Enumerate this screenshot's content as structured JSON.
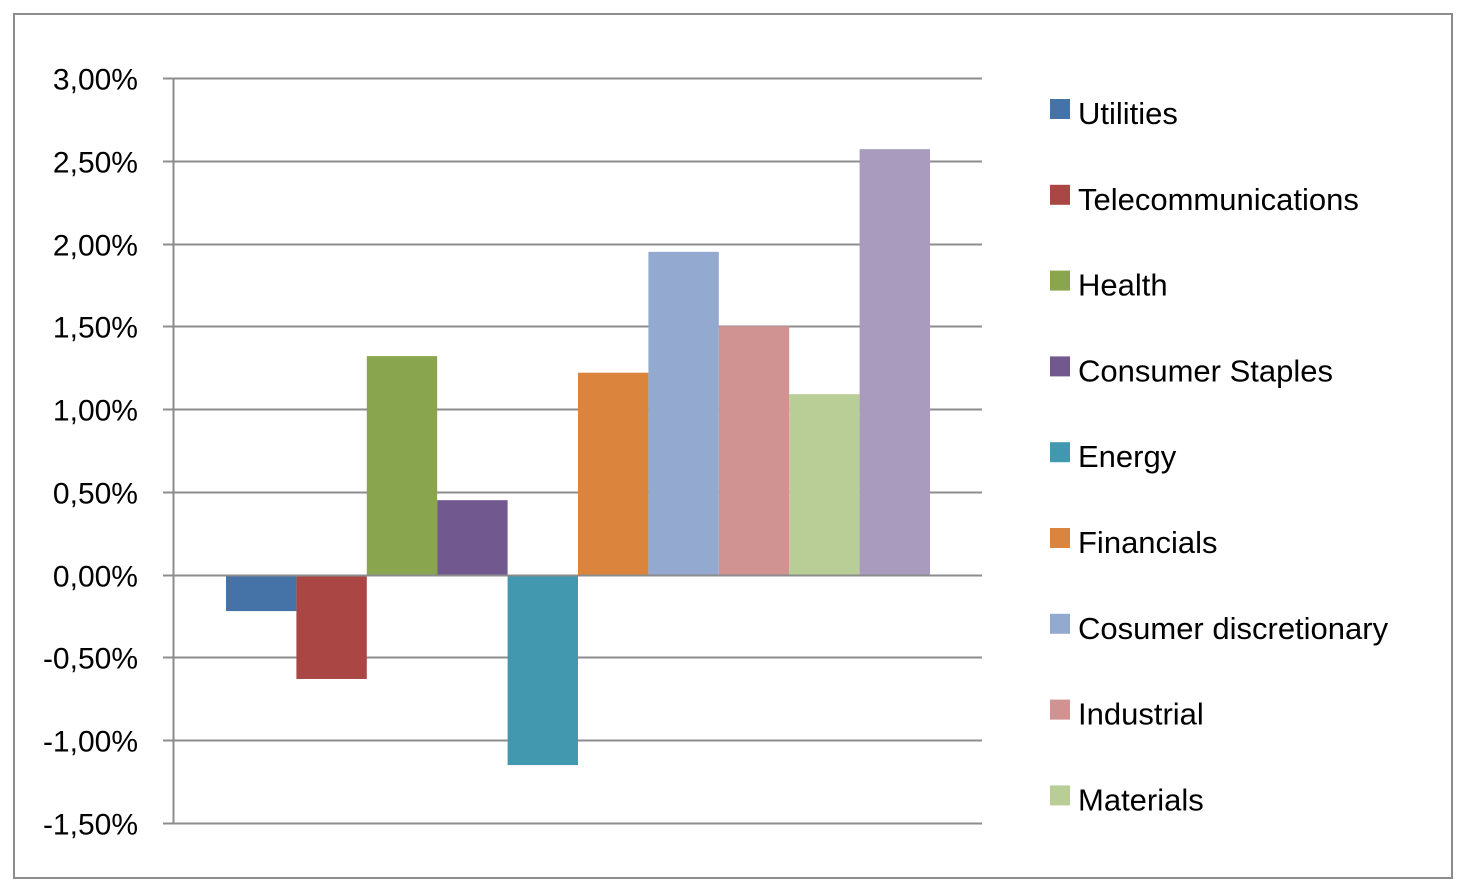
{
  "chart_data": {
    "type": "bar",
    "title": "",
    "xlabel": "",
    "ylabel": "",
    "ylim": [
      -0.015,
      0.03
    ],
    "y_tick_step": 0.005,
    "y_tick_labels": [
      "3,00%",
      "2,50%",
      "2,00%",
      "1,50%",
      "1,00%",
      "0,50%",
      "0,00%",
      "-0,50%",
      "-1,00%",
      "-1,50%"
    ],
    "grid": true,
    "legend_position": "right",
    "legend_entries": [
      "Utilities",
      "Telecommunications",
      "Health",
      "Consumer Staples",
      "Energy",
      "Financials",
      "Cosumer discretionary",
      "Industrial",
      "Materials"
    ],
    "series": [
      {
        "name": "Utilities",
        "value": -0.0022,
        "color": "#4572a7"
      },
      {
        "name": "Telecommunications",
        "value": -0.0063,
        "color": "#aa4643"
      },
      {
        "name": "Health",
        "value": 0.0132,
        "color": "#89a54e"
      },
      {
        "name": "Consumer Staples",
        "value": 0.0045,
        "color": "#71588f"
      },
      {
        "name": "Energy",
        "value": -0.0115,
        "color": "#4198af"
      },
      {
        "name": "Financials",
        "value": 0.0122,
        "color": "#db843d"
      },
      {
        "name": "Cosumer discretionary",
        "value": 0.0195,
        "color": "#93a9cf"
      },
      {
        "name": "Industrial",
        "value": 0.015,
        "color": "#d19392"
      },
      {
        "name": "Materials",
        "value": 0.0109,
        "color": "#b9cd96"
      },
      {
        "name": "",
        "value": 0.0257,
        "color": "#a99bbd"
      }
    ]
  }
}
